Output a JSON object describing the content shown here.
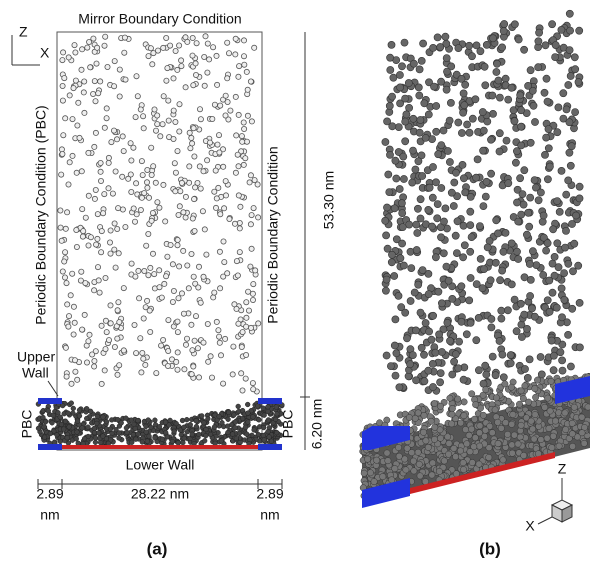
{
  "panel_a": {
    "axis_z": "Z",
    "axis_x": "X",
    "top_label": "Mirror Boundary Condition",
    "left_label": "Periodic Boundary Condition (PBC)",
    "right_label": "Periodic Boundary Condition",
    "height_dim": "53.30 nm",
    "wall_dim": "6.20 nm",
    "upper_wall": [
      "Upper",
      "Wall"
    ],
    "pbc_left": "PBC",
    "pbc_right": "PBC",
    "lower_wall": "Lower Wall",
    "width_left": [
      "2.89",
      "nm"
    ],
    "width_center": "28.22 nm",
    "width_right": [
      "2.89",
      "nm"
    ],
    "caption": "(a)"
  },
  "panel_b": {
    "axis_z": "Z",
    "axis_x": "X",
    "caption": "(b)"
  }
}
